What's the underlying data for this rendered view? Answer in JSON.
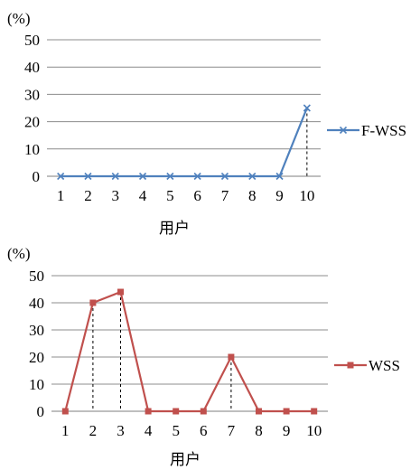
{
  "chart_data": [
    {
      "type": "line",
      "unit_label": "(%)",
      "xlabel": "用户",
      "ylabel": "",
      "categories": [
        "1",
        "2",
        "3",
        "4",
        "5",
        "6",
        "7",
        "8",
        "9",
        "10"
      ],
      "ylim": [
        0,
        50
      ],
      "yticks": [
        0,
        10,
        20,
        30,
        40,
        50
      ],
      "grid": true,
      "legend_position": "right",
      "drop_lines_at": [
        "10"
      ],
      "series": [
        {
          "name": "F-WSS",
          "marker": "x",
          "color": "#4F81BD",
          "values": [
            0,
            0,
            0,
            0,
            0,
            0,
            0,
            0,
            0,
            25
          ]
        }
      ]
    },
    {
      "type": "line",
      "unit_label": "(%)",
      "xlabel": "用户",
      "ylabel": "",
      "categories": [
        "1",
        "2",
        "3",
        "4",
        "5",
        "6",
        "7",
        "8",
        "9",
        "10"
      ],
      "ylim": [
        0,
        50
      ],
      "yticks": [
        0,
        10,
        20,
        30,
        40,
        50
      ],
      "grid": true,
      "legend_position": "right",
      "drop_lines_at": [
        "2",
        "3",
        "7"
      ],
      "series": [
        {
          "name": "WSS",
          "marker": "square",
          "color": "#C0504D",
          "values": [
            0,
            40,
            44,
            0,
            0,
            0,
            20,
            0,
            0,
            0
          ]
        }
      ]
    }
  ]
}
